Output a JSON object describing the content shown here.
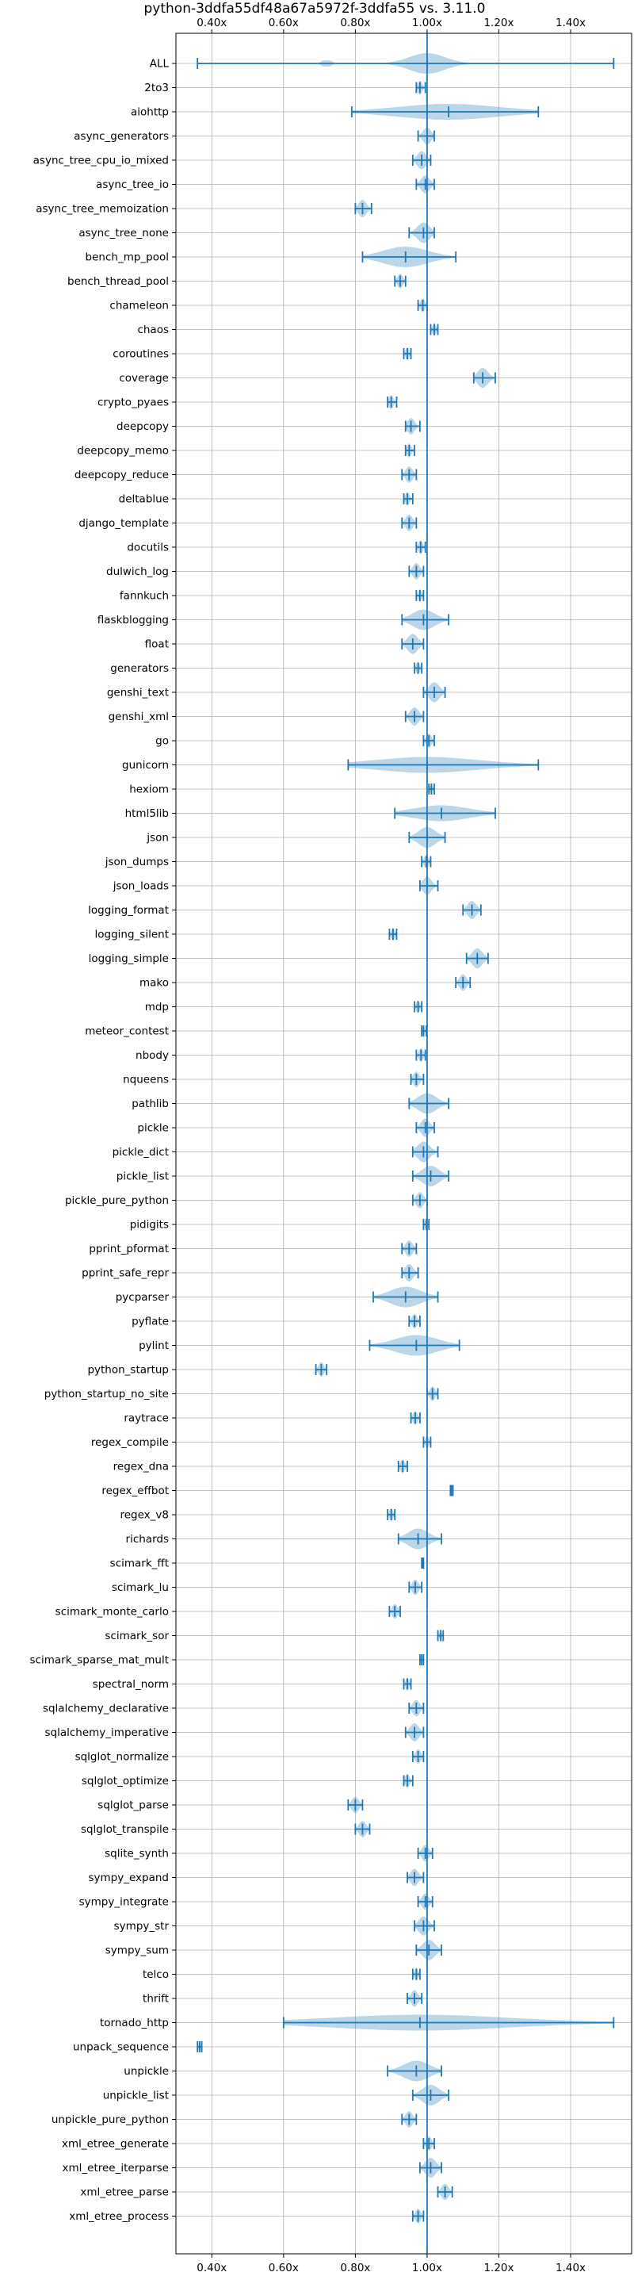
{
  "chart_data": {
    "type": "violin",
    "title": "python-3ddfa55df48a67a5972f-3ddfa55 vs. 3.11.0",
    "xlim": [
      0.3,
      1.57
    ],
    "xticks": [
      {
        "value": 0.4,
        "label": "0.40x"
      },
      {
        "value": 0.6,
        "label": "0.60x"
      },
      {
        "value": 0.8,
        "label": "0.80x"
      },
      {
        "value": 1.0,
        "label": "1.00x"
      },
      {
        "value": 1.2,
        "label": "1.20x"
      },
      {
        "value": 1.4,
        "label": "1.40x"
      }
    ],
    "reference_line": 1.0,
    "grid": true,
    "color": "#1f77b4",
    "benchmarks": [
      {
        "name": "ALL",
        "min": 0.36,
        "max": 1.52,
        "median": 1.0,
        "spread": 0.05,
        "shape": "all"
      },
      {
        "name": "2to3",
        "min": 0.97,
        "max": 0.995,
        "median": 0.98
      },
      {
        "name": "aiohttp",
        "min": 0.79,
        "max": 1.31,
        "median": 1.06,
        "shape": "wide"
      },
      {
        "name": "async_generators",
        "min": 0.975,
        "max": 1.02,
        "median": 1.0
      },
      {
        "name": "async_tree_cpu_io_mixed",
        "min": 0.96,
        "max": 1.01,
        "median": 0.985
      },
      {
        "name": "async_tree_io",
        "min": 0.97,
        "max": 1.02,
        "median": 0.995
      },
      {
        "name": "async_tree_memoization",
        "min": 0.8,
        "max": 0.845,
        "median": 0.82
      },
      {
        "name": "async_tree_none",
        "min": 0.95,
        "max": 1.02,
        "median": 0.99
      },
      {
        "name": "bench_mp_pool",
        "min": 0.82,
        "max": 1.08,
        "median": 0.94
      },
      {
        "name": "bench_thread_pool",
        "min": 0.91,
        "max": 0.94,
        "median": 0.925
      },
      {
        "name": "chameleon",
        "min": 0.975,
        "max": 1.0,
        "median": 0.988
      },
      {
        "name": "chaos",
        "min": 1.01,
        "max": 1.03,
        "median": 1.02
      },
      {
        "name": "coroutines",
        "min": 0.935,
        "max": 0.955,
        "median": 0.945
      },
      {
        "name": "coverage",
        "min": 1.13,
        "max": 1.19,
        "median": 1.155
      },
      {
        "name": "crypto_pyaes",
        "min": 0.89,
        "max": 0.915,
        "median": 0.9
      },
      {
        "name": "deepcopy",
        "min": 0.94,
        "max": 0.98,
        "median": 0.955
      },
      {
        "name": "deepcopy_memo",
        "min": 0.94,
        "max": 0.965,
        "median": 0.95
      },
      {
        "name": "deepcopy_reduce",
        "min": 0.93,
        "max": 0.97,
        "median": 0.95
      },
      {
        "name": "deltablue",
        "min": 0.935,
        "max": 0.96,
        "median": 0.945
      },
      {
        "name": "django_template",
        "min": 0.93,
        "max": 0.97,
        "median": 0.95
      },
      {
        "name": "docutils",
        "min": 0.97,
        "max": 0.995,
        "median": 0.982
      },
      {
        "name": "dulwich_log",
        "min": 0.95,
        "max": 0.99,
        "median": 0.97
      },
      {
        "name": "fannkuch",
        "min": 0.97,
        "max": 0.99,
        "median": 0.98
      },
      {
        "name": "flaskblogging",
        "min": 0.93,
        "max": 1.06,
        "median": 0.99
      },
      {
        "name": "float",
        "min": 0.93,
        "max": 0.99,
        "median": 0.96
      },
      {
        "name": "generators",
        "min": 0.965,
        "max": 0.985,
        "median": 0.975
      },
      {
        "name": "genshi_text",
        "min": 0.99,
        "max": 1.05,
        "median": 1.02
      },
      {
        "name": "genshi_xml",
        "min": 0.94,
        "max": 0.99,
        "median": 0.965
      },
      {
        "name": "go",
        "min": 0.99,
        "max": 1.02,
        "median": 1.005
      },
      {
        "name": "gunicorn",
        "min": 0.78,
        "max": 1.31,
        "median": 1.0,
        "shape": "wide"
      },
      {
        "name": "hexiom",
        "min": 1.005,
        "max": 1.02,
        "median": 1.012
      },
      {
        "name": "html5lib",
        "min": 0.91,
        "max": 1.19,
        "median": 1.04,
        "shape": "wide"
      },
      {
        "name": "json",
        "min": 0.95,
        "max": 1.05,
        "median": 1.0
      },
      {
        "name": "json_dumps",
        "min": 0.985,
        "max": 1.01,
        "median": 0.998
      },
      {
        "name": "json_loads",
        "min": 0.98,
        "max": 1.03,
        "median": 1.0
      },
      {
        "name": "logging_format",
        "min": 1.1,
        "max": 1.15,
        "median": 1.125
      },
      {
        "name": "logging_silent",
        "min": 0.895,
        "max": 0.915,
        "median": 0.905
      },
      {
        "name": "logging_simple",
        "min": 1.11,
        "max": 1.17,
        "median": 1.14
      },
      {
        "name": "mako",
        "min": 1.08,
        "max": 1.12,
        "median": 1.1
      },
      {
        "name": "mdp",
        "min": 0.965,
        "max": 0.985,
        "median": 0.975
      },
      {
        "name": "meteor_contest",
        "min": 0.985,
        "max": 0.998,
        "median": 0.99
      },
      {
        "name": "nbody",
        "min": 0.97,
        "max": 0.995,
        "median": 0.983
      },
      {
        "name": "nqueens",
        "min": 0.955,
        "max": 0.99,
        "median": 0.97
      },
      {
        "name": "pathlib",
        "min": 0.95,
        "max": 1.06,
        "median": 1.0
      },
      {
        "name": "pickle",
        "min": 0.97,
        "max": 1.02,
        "median": 0.995
      },
      {
        "name": "pickle_dict",
        "min": 0.96,
        "max": 1.03,
        "median": 0.99
      },
      {
        "name": "pickle_list",
        "min": 0.96,
        "max": 1.06,
        "median": 1.01
      },
      {
        "name": "pickle_pure_python",
        "min": 0.96,
        "max": 1.0,
        "median": 0.98
      },
      {
        "name": "pidigits",
        "min": 0.99,
        "max": 1.005,
        "median": 0.998
      },
      {
        "name": "pprint_pformat",
        "min": 0.93,
        "max": 0.97,
        "median": 0.95
      },
      {
        "name": "pprint_safe_repr",
        "min": 0.93,
        "max": 0.975,
        "median": 0.95
      },
      {
        "name": "pycparser",
        "min": 0.85,
        "max": 1.03,
        "median": 0.94
      },
      {
        "name": "pyflate",
        "min": 0.95,
        "max": 0.98,
        "median": 0.965
      },
      {
        "name": "pylint",
        "min": 0.84,
        "max": 1.09,
        "median": 0.97
      },
      {
        "name": "python_startup",
        "min": 0.69,
        "max": 0.72,
        "median": 0.705
      },
      {
        "name": "python_startup_no_site",
        "min": 1.0,
        "max": 1.03,
        "median": 1.015
      },
      {
        "name": "raytrace",
        "min": 0.955,
        "max": 0.98,
        "median": 0.967
      },
      {
        "name": "regex_compile",
        "min": 0.99,
        "max": 1.01,
        "median": 1.0
      },
      {
        "name": "regex_dna",
        "min": 0.92,
        "max": 0.945,
        "median": 0.932
      },
      {
        "name": "regex_effbot",
        "min": 1.065,
        "max": 1.072,
        "median": 1.068
      },
      {
        "name": "regex_v8",
        "min": 0.89,
        "max": 0.91,
        "median": 0.9
      },
      {
        "name": "richards",
        "min": 0.92,
        "max": 1.04,
        "median": 0.975
      },
      {
        "name": "scimark_fft",
        "min": 0.985,
        "max": 0.99,
        "median": 0.987
      },
      {
        "name": "scimark_lu",
        "min": 0.95,
        "max": 0.985,
        "median": 0.967
      },
      {
        "name": "scimark_monte_carlo",
        "min": 0.895,
        "max": 0.925,
        "median": 0.91
      },
      {
        "name": "scimark_sor",
        "min": 1.03,
        "max": 1.045,
        "median": 1.038
      },
      {
        "name": "scimark_sparse_mat_mult",
        "min": 0.98,
        "max": 0.99,
        "median": 0.985
      },
      {
        "name": "spectral_norm",
        "min": 0.935,
        "max": 0.955,
        "median": 0.945
      },
      {
        "name": "sqlalchemy_declarative",
        "min": 0.95,
        "max": 0.99,
        "median": 0.97
      },
      {
        "name": "sqlalchemy_imperative",
        "min": 0.94,
        "max": 0.99,
        "median": 0.965
      },
      {
        "name": "sqlglot_normalize",
        "min": 0.96,
        "max": 0.99,
        "median": 0.975
      },
      {
        "name": "sqlglot_optimize",
        "min": 0.935,
        "max": 0.96,
        "median": 0.945
      },
      {
        "name": "sqlglot_parse",
        "min": 0.78,
        "max": 0.82,
        "median": 0.8
      },
      {
        "name": "sqlglot_transpile",
        "min": 0.8,
        "max": 0.84,
        "median": 0.82
      },
      {
        "name": "sqlite_synth",
        "min": 0.975,
        "max": 1.015,
        "median": 0.995
      },
      {
        "name": "sympy_expand",
        "min": 0.945,
        "max": 0.99,
        "median": 0.965
      },
      {
        "name": "sympy_integrate",
        "min": 0.975,
        "max": 1.015,
        "median": 0.995
      },
      {
        "name": "sympy_str",
        "min": 0.965,
        "max": 1.02,
        "median": 0.99
      },
      {
        "name": "sympy_sum",
        "min": 0.97,
        "max": 1.04,
        "median": 1.005
      },
      {
        "name": "telco",
        "min": 0.96,
        "max": 0.98,
        "median": 0.97
      },
      {
        "name": "thrift",
        "min": 0.945,
        "max": 0.985,
        "median": 0.965
      },
      {
        "name": "tornado_http",
        "min": 0.6,
        "max": 1.52,
        "median": 0.98,
        "shape": "wide"
      },
      {
        "name": "unpack_sequence",
        "min": 0.36,
        "max": 0.372,
        "median": 0.366
      },
      {
        "name": "unpickle",
        "min": 0.89,
        "max": 1.04,
        "median": 0.97
      },
      {
        "name": "unpickle_list",
        "min": 0.96,
        "max": 1.06,
        "median": 1.01
      },
      {
        "name": "unpickle_pure_python",
        "min": 0.93,
        "max": 0.97,
        "median": 0.95
      },
      {
        "name": "xml_etree_generate",
        "min": 0.99,
        "max": 1.02,
        "median": 1.005
      },
      {
        "name": "xml_etree_iterparse",
        "min": 0.98,
        "max": 1.04,
        "median": 1.01
      },
      {
        "name": "xml_etree_parse",
        "min": 1.03,
        "max": 1.07,
        "median": 1.05
      },
      {
        "name": "xml_etree_process",
        "min": 0.96,
        "max": 0.99,
        "median": 0.975
      }
    ]
  }
}
